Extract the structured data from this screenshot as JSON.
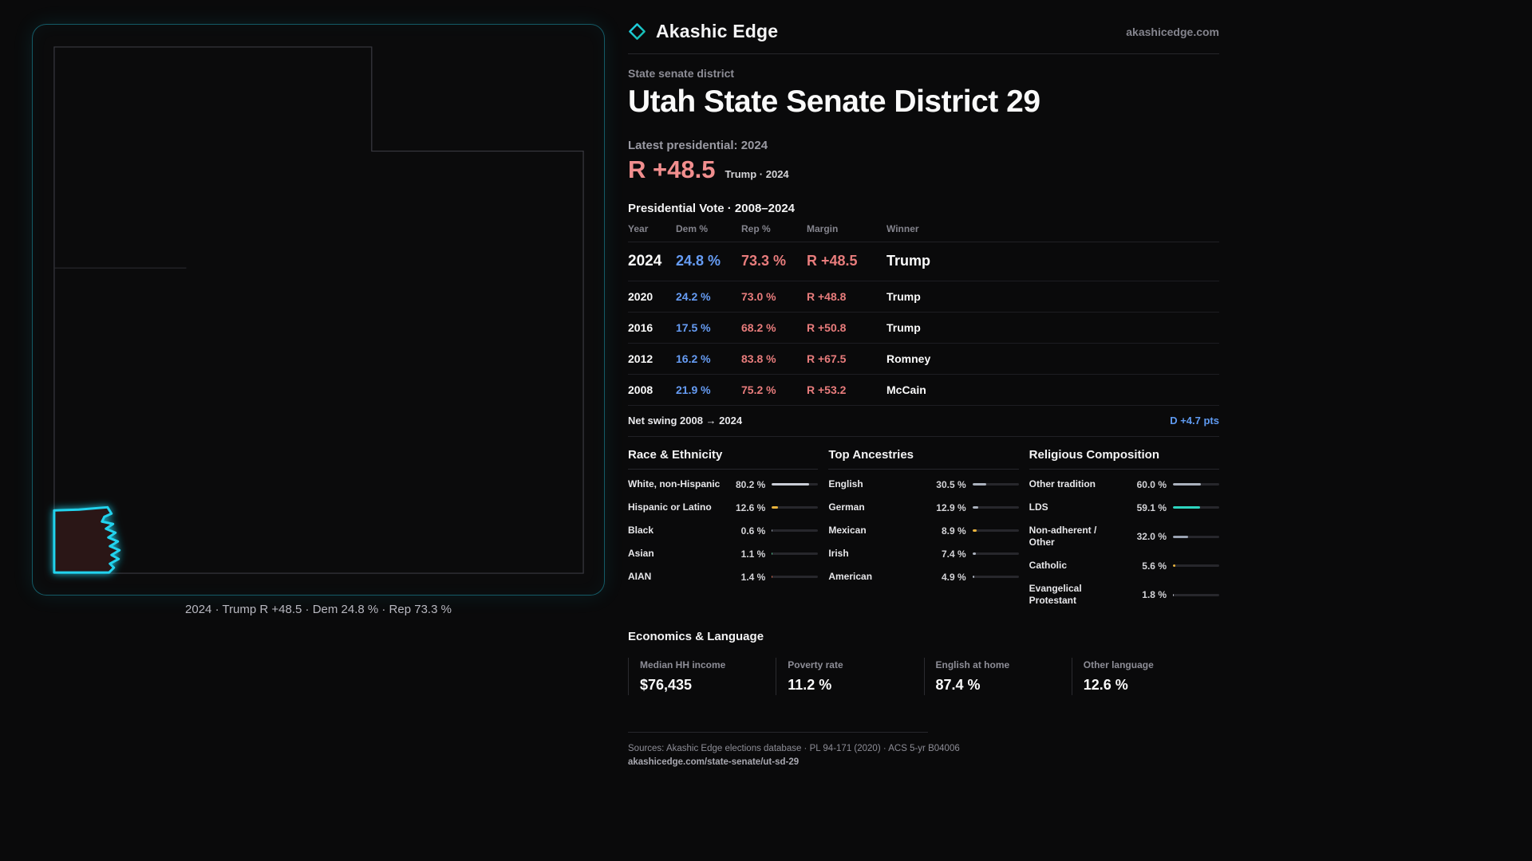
{
  "brand": {
    "name": "Akashic Edge",
    "site": "akashicedge.com"
  },
  "page": {
    "kicker": "State senate district",
    "title": "Utah State Senate District 29"
  },
  "headline": {
    "label": "Latest presidential: 2024",
    "margin": "R +48.5",
    "note": "Trump · 2024"
  },
  "vote": {
    "title": "Presidential Vote · 2008–2024",
    "columns": {
      "year": "Year",
      "dem": "Dem %",
      "rep": "Rep %",
      "margin": "Margin",
      "winner": "Winner"
    },
    "rows": [
      {
        "year": "2024",
        "dem": "24.8 %",
        "rep": "73.3 %",
        "margin": "R +48.5",
        "winner": "Trump"
      },
      {
        "year": "2020",
        "dem": "24.2 %",
        "rep": "73.0 %",
        "margin": "R +48.8",
        "winner": "Trump"
      },
      {
        "year": "2016",
        "dem": "17.5 %",
        "rep": "68.2 %",
        "margin": "R +50.8",
        "winner": "Trump"
      },
      {
        "year": "2012",
        "dem": "16.2 %",
        "rep": "83.8 %",
        "margin": "R +67.5",
        "winner": "Romney"
      },
      {
        "year": "2008",
        "dem": "21.9 %",
        "rep": "75.2 %",
        "margin": "R +53.2",
        "winner": "McCain"
      }
    ]
  },
  "swing": {
    "label": "Net swing 2008 → 2024",
    "value": "D +4.7 pts"
  },
  "race": {
    "title": "Race & Ethnicity",
    "rows": [
      {
        "label": "White, non-Hispanic",
        "value": "80.2 %",
        "pct": 80.2,
        "color": "#c9cdd6"
      },
      {
        "label": "Hispanic or Latino",
        "value": "12.6 %",
        "pct": 12.6,
        "color": "#e8b33c"
      },
      {
        "label": "Black",
        "value": "0.6 %",
        "pct": 0.6,
        "color": "#9aa3b2"
      },
      {
        "label": "Asian",
        "value": "1.1 %",
        "pct": 1.1,
        "color": "#4fc08d"
      },
      {
        "label": "AIAN",
        "value": "1.4 %",
        "pct": 1.4,
        "color": "#e06a4f"
      }
    ]
  },
  "ancestries": {
    "title": "Top Ancestries",
    "rows": [
      {
        "label": "English",
        "value": "30.5 %",
        "pct": 30.5,
        "color": "#aab1bd"
      },
      {
        "label": "German",
        "value": "12.9 %",
        "pct": 12.9,
        "color": "#aab1bd"
      },
      {
        "label": "Mexican",
        "value": "8.9 %",
        "pct": 8.9,
        "color": "#e8b33c"
      },
      {
        "label": "Irish",
        "value": "7.4 %",
        "pct": 7.4,
        "color": "#aab1bd"
      },
      {
        "label": "American",
        "value": "4.9 %",
        "pct": 4.9,
        "color": "#aab1bd"
      }
    ]
  },
  "religion": {
    "title": "Religious Composition",
    "rows": [
      {
        "label": "Other tradition",
        "value": "60.0 %",
        "pct": 60.0,
        "color": "#aab1bd"
      },
      {
        "label": "LDS",
        "value": "59.1 %",
        "pct": 59.1,
        "color": "#2dd4bf"
      },
      {
        "label": "Non-adherent / Other",
        "value": "32.0 %",
        "pct": 32.0,
        "color": "#9aa3b2"
      },
      {
        "label": "Catholic",
        "value": "5.6 %",
        "pct": 5.6,
        "color": "#e8b33c"
      },
      {
        "label": "Evangelical Protestant",
        "value": "1.8 %",
        "pct": 1.8,
        "color": "#c9cdd6"
      }
    ]
  },
  "economics": {
    "title": "Economics & Language",
    "stats": [
      {
        "label": "Median HH income",
        "value": "$76,435"
      },
      {
        "label": "Poverty rate",
        "value": "11.2 %"
      },
      {
        "label": "English at home",
        "value": "87.4 %"
      },
      {
        "label": "Other language",
        "value": "12.6 %"
      }
    ]
  },
  "map": {
    "caption": "2024 · Trump R +48.5 · Dem 24.8 % · Rep 73.3 %"
  },
  "footer": {
    "sources": "Sources: Akashic Edge elections database · PL 94-171 (2020) · ACS 5-yr B04006",
    "permalink": "akashicedge.com/state-senate/ut-sd-29"
  },
  "colors": {
    "accent_cyan": "#22d3ee",
    "rep_red": "#e87c7c",
    "dem_blue": "#669cf4",
    "lds_teal": "#2dd4bf"
  },
  "chart_data": [
    {
      "type": "table",
      "title": "Presidential Vote · 2008–2024",
      "columns": [
        "Year",
        "Dem %",
        "Rep %",
        "Margin",
        "Winner"
      ],
      "rows": [
        [
          2024,
          24.8,
          73.3,
          "R +48.5",
          "Trump"
        ],
        [
          2020,
          24.2,
          73.0,
          "R +48.8",
          "Trump"
        ],
        [
          2016,
          17.5,
          68.2,
          "R +50.8",
          "Trump"
        ],
        [
          2012,
          16.2,
          83.8,
          "R +67.5",
          "Romney"
        ],
        [
          2008,
          21.9,
          75.2,
          "R +53.2",
          "McCain"
        ]
      ],
      "net_swing_2008_2024": "D +4.7 pts"
    },
    {
      "type": "bar",
      "title": "Race & Ethnicity",
      "categories": [
        "White, non-Hispanic",
        "Hispanic or Latino",
        "Black",
        "Asian",
        "AIAN"
      ],
      "values": [
        80.2,
        12.6,
        0.6,
        1.1,
        1.4
      ],
      "xlabel": "",
      "ylabel": "%",
      "xlim": [
        0,
        100
      ],
      "orientation": "horizontal"
    },
    {
      "type": "bar",
      "title": "Top Ancestries",
      "categories": [
        "English",
        "German",
        "Mexican",
        "Irish",
        "American"
      ],
      "values": [
        30.5,
        12.9,
        8.9,
        7.4,
        4.9
      ],
      "xlabel": "",
      "ylabel": "%",
      "xlim": [
        0,
        100
      ],
      "orientation": "horizontal"
    },
    {
      "type": "bar",
      "title": "Religious Composition",
      "categories": [
        "Other tradition",
        "LDS",
        "Non-adherent / Other",
        "Catholic",
        "Evangelical Protestant"
      ],
      "values": [
        60.0,
        59.1,
        32.0,
        5.6,
        1.8
      ],
      "xlabel": "",
      "ylabel": "%",
      "xlim": [
        0,
        100
      ],
      "orientation": "horizontal"
    },
    {
      "type": "table",
      "title": "Economics & Language",
      "columns": [
        "Median HH income",
        "Poverty rate",
        "English at home",
        "Other language"
      ],
      "rows": [
        [
          "$76,435",
          "11.2 %",
          "87.4 %",
          "12.6 %"
        ]
      ]
    }
  ]
}
